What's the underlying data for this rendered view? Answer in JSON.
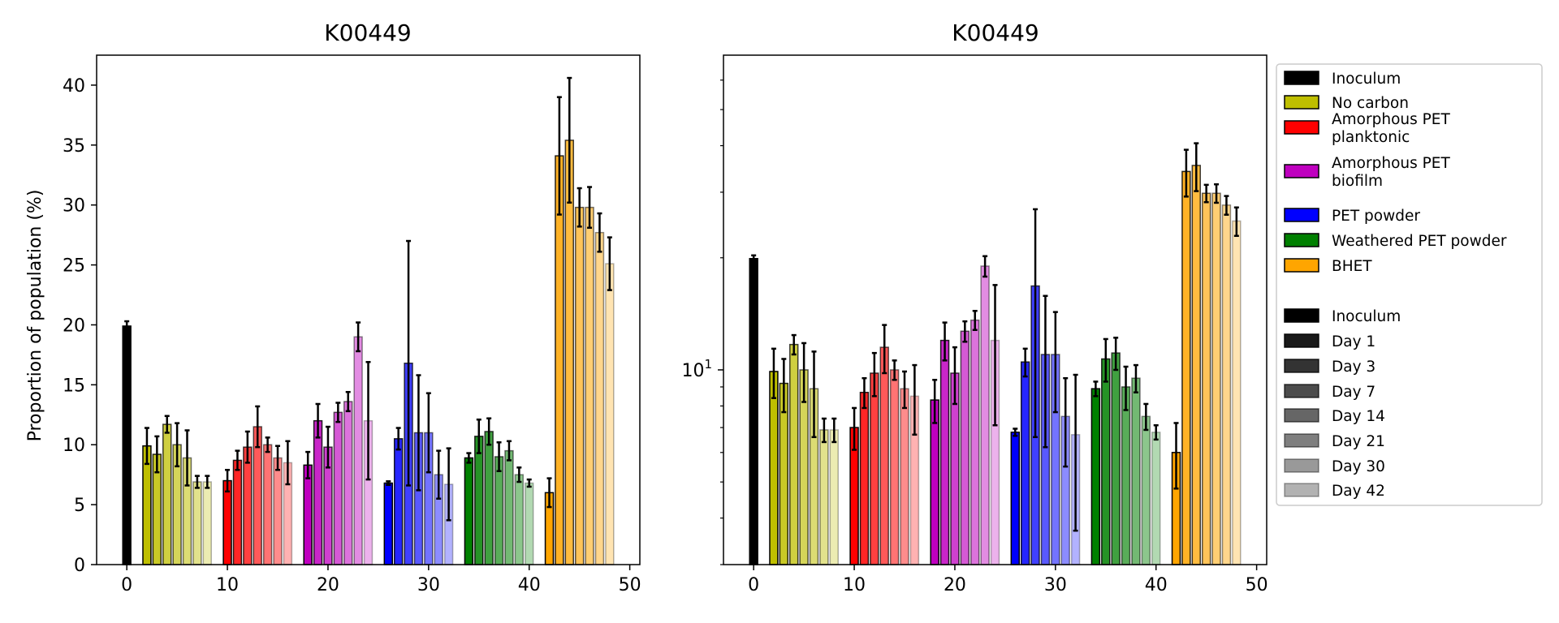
{
  "chart_data": [
    {
      "type": "bar",
      "title": "K00449",
      "xlabel": "",
      "ylabel": "Proportion of population (%)",
      "yscale": "linear",
      "xlim": [
        -3,
        51
      ],
      "ylim": [
        0,
        42.5
      ],
      "xticks": [
        "0",
        "10",
        "20",
        "30",
        "40",
        "50"
      ],
      "yticks": [
        "0",
        "5",
        "10",
        "15",
        "20",
        "25",
        "30",
        "35",
        "40"
      ]
    },
    {
      "type": "bar",
      "title": "K00449",
      "xlabel": "",
      "ylabel": "",
      "yscale": "log",
      "xlim": [
        -3,
        51
      ],
      "ylim": [
        3.0,
        70
      ],
      "xticks": [
        "0",
        "10",
        "20",
        "30",
        "40",
        "50"
      ],
      "yticks": [
        {
          "base": "10",
          "exp": "1",
          "value": 10
        }
      ]
    }
  ],
  "series": [
    {
      "name": "Inoculum",
      "color": "#000000",
      "x": [
        0
      ],
      "values": [
        19.9
      ],
      "errors": [
        0.4
      ]
    },
    {
      "name": "No carbon",
      "color": "#bfbf00",
      "x": [
        2,
        3,
        4,
        5,
        6,
        7,
        8
      ],
      "values": [
        9.9,
        9.2,
        11.7,
        10.0,
        8.9,
        6.9,
        6.9
      ],
      "errors": [
        1.5,
        1.5,
        0.7,
        1.8,
        2.3,
        0.5,
        0.5
      ]
    },
    {
      "name": "Amorphous PET\nplanktonic",
      "color": "#ff0000",
      "x": [
        10,
        11,
        12,
        13,
        14,
        15,
        16
      ],
      "values": [
        7.0,
        8.7,
        9.8,
        11.5,
        10.0,
        8.9,
        8.5
      ],
      "errors": [
        0.9,
        0.8,
        1.3,
        1.7,
        0.6,
        1.0,
        1.8
      ]
    },
    {
      "name": "Amorphous PET\nbiofilm",
      "color": "#bf00bf",
      "x": [
        18,
        19,
        20,
        21,
        22,
        23,
        24
      ],
      "values": [
        8.3,
        12.0,
        9.8,
        12.7,
        13.6,
        19.0,
        12.0
      ],
      "errors": [
        1.1,
        1.4,
        1.7,
        0.8,
        0.8,
        1.2,
        4.9
      ]
    },
    {
      "name": "PET powder",
      "color": "#0000ff",
      "x": [
        26,
        27,
        28,
        29,
        30,
        31,
        32
      ],
      "values": [
        6.8,
        10.5,
        16.8,
        11.0,
        11.0,
        7.5,
        6.7
      ],
      "errors": [
        0.15,
        0.9,
        10.2,
        4.8,
        3.3,
        2.0,
        3.0
      ]
    },
    {
      "name": "Weathered PET powder",
      "color": "#008000",
      "x": [
        34,
        35,
        36,
        37,
        38,
        39,
        40
      ],
      "values": [
        8.9,
        10.7,
        11.1,
        9.0,
        9.5,
        7.5,
        6.8
      ],
      "errors": [
        0.4,
        1.4,
        1.1,
        1.2,
        0.8,
        0.6,
        0.3
      ]
    },
    {
      "name": "BHET",
      "color": "#ffa500",
      "x": [
        42,
        43,
        44,
        45,
        46,
        47,
        48
      ],
      "values": [
        6.0,
        34.1,
        35.4,
        29.8,
        29.8,
        27.7,
        25.1
      ],
      "errors": [
        1.2,
        4.9,
        5.2,
        1.6,
        1.7,
        1.6,
        2.2
      ]
    }
  ],
  "day_alphas": [
    1.0,
    0.85,
    0.75,
    0.65,
    0.55,
    0.45,
    0.3
  ],
  "legend": {
    "placement": "right",
    "group1": [
      {
        "label": [
          "Inoculum"
        ],
        "color": "#000000"
      },
      {
        "label": [
          "No carbon"
        ],
        "color": "#bfbf00"
      },
      {
        "label": [
          "Amorphous PET",
          "planktonic"
        ],
        "color": "#ff0000"
      },
      {
        "label": [
          "Amorphous PET",
          "biofilm"
        ],
        "color": "#bf00bf"
      },
      {
        "label": [
          "PET powder"
        ],
        "color": "#0000ff"
      },
      {
        "label": [
          "Weathered PET powder"
        ],
        "color": "#008000"
      },
      {
        "label": [
          "BHET"
        ],
        "color": "#ffa500"
      }
    ],
    "group2": [
      {
        "label": [
          "Inoculum"
        ],
        "alpha": 1.0
      },
      {
        "label": [
          "Day 1"
        ],
        "alpha": 0.9
      },
      {
        "label": [
          "Day 3"
        ],
        "alpha": 0.8
      },
      {
        "label": [
          "Day 7"
        ],
        "alpha": 0.7
      },
      {
        "label": [
          "Day 14"
        ],
        "alpha": 0.6
      },
      {
        "label": [
          "Day 21"
        ],
        "alpha": 0.5
      },
      {
        "label": [
          "Day 30"
        ],
        "alpha": 0.4
      },
      {
        "label": [
          "Day 42"
        ],
        "alpha": 0.3
      }
    ]
  }
}
